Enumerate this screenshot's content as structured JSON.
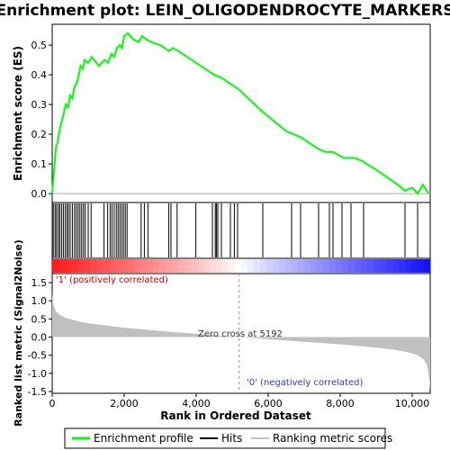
{
  "title": "Enrichment plot: LEIN_OLIGODENDROCYTE_MARKERS",
  "colors": {
    "es_line": "#00ff00",
    "hits": "#000000",
    "metric_fill": "#c0c0c0",
    "pos_label": "#cc0000",
    "neg_label": "#3333cc"
  },
  "chart_data": [
    {
      "type": "line",
      "name": "enrichment-profile",
      "ylabel": "Enrichment score (ES)",
      "xlim": [
        0,
        10500
      ],
      "ylim": [
        -0.03,
        0.57
      ],
      "yticks": [
        0.0,
        0.1,
        0.2,
        0.3,
        0.4,
        0.5
      ],
      "ytick_labels": [
        "0.0",
        "0.1",
        "0.2",
        "0.3",
        "0.4",
        "0.5"
      ],
      "grid": false,
      "x": [
        0,
        40,
        80,
        110,
        150,
        200,
        260,
        320,
        380,
        440,
        500,
        560,
        620,
        680,
        740,
        790,
        850,
        900,
        1000,
        1100,
        1300,
        1450,
        1550,
        1650,
        1720,
        1800,
        1880,
        1940,
        2000,
        2100,
        2250,
        2400,
        2500,
        2600,
        2750,
        3000,
        3250,
        3350,
        3500,
        4000,
        4500,
        4700,
        5192,
        5800,
        6500,
        6900,
        7400,
        7600,
        7800,
        8100,
        8400,
        8600,
        9000,
        9600,
        9800,
        10000,
        10150,
        10300,
        10450
      ],
      "y": [
        0.0,
        0.06,
        0.12,
        0.16,
        0.17,
        0.21,
        0.24,
        0.27,
        0.3,
        0.29,
        0.33,
        0.32,
        0.36,
        0.37,
        0.4,
        0.43,
        0.42,
        0.45,
        0.44,
        0.46,
        0.43,
        0.45,
        0.44,
        0.47,
        0.46,
        0.49,
        0.5,
        0.49,
        0.53,
        0.54,
        0.52,
        0.51,
        0.53,
        0.52,
        0.51,
        0.5,
        0.48,
        0.49,
        0.48,
        0.44,
        0.4,
        0.39,
        0.35,
        0.28,
        0.21,
        0.19,
        0.15,
        0.14,
        0.14,
        0.12,
        0.12,
        0.11,
        0.08,
        0.03,
        0.01,
        0.02,
        0.0,
        0.03,
        0.0
      ]
    },
    {
      "type": "scatter",
      "name": "hits",
      "x": [
        30,
        80,
        120,
        170,
        210,
        260,
        310,
        360,
        410,
        450,
        500,
        560,
        620,
        670,
        720,
        770,
        820,
        870,
        920,
        1000,
        1080,
        1440,
        1540,
        1610,
        1660,
        1720,
        1780,
        1830,
        1880,
        1930,
        1980,
        2030,
        2080,
        2470,
        2560,
        2660,
        3240,
        3300,
        3470,
        3990,
        4450,
        4530,
        4560,
        4600,
        4700,
        4950,
        5060,
        5150,
        5850,
        6650,
        6900,
        7400,
        7700,
        7800,
        8050,
        8300,
        8650,
        9800,
        10150
      ]
    },
    {
      "type": "area",
      "name": "ranking-metric-scores",
      "ylabel": "Ranked list metric (Signal2Noise)",
      "xlabel": "Rank in Ordered Dataset",
      "xlim": [
        0,
        10500
      ],
      "ylim": [
        -1.55,
        1.75
      ],
      "xticks": [
        0,
        2000,
        4000,
        6000,
        8000,
        10000
      ],
      "xtick_labels": [
        "0",
        "2,000",
        "4,000",
        "6,000",
        "8,000",
        "10,000"
      ],
      "yticks": [
        -1.5,
        -1.0,
        -0.5,
        0.0,
        0.5,
        1.0,
        1.5
      ],
      "ytick_labels": [
        "-1.5",
        "-1.0",
        "-0.5",
        "0.0",
        "0.5",
        "1.0",
        "1.5"
      ],
      "x": [
        0,
        20,
        60,
        100,
        200,
        400,
        700,
        1000,
        1500,
        2000,
        3000,
        4000,
        5192,
        6000,
        7000,
        8000,
        9000,
        9500,
        9900,
        10150,
        10300,
        10400,
        10450,
        10480,
        10499
      ],
      "y": [
        1.2,
        0.98,
        0.82,
        0.72,
        0.62,
        0.52,
        0.44,
        0.38,
        0.32,
        0.26,
        0.17,
        0.09,
        0.0,
        -0.06,
        -0.13,
        -0.2,
        -0.29,
        -0.35,
        -0.42,
        -0.5,
        -0.6,
        -0.75,
        -0.95,
        -1.2,
        -1.45
      ]
    }
  ],
  "annotations": {
    "zero_cross": "Zero cross at 5192",
    "zero_cross_rank": 5192,
    "positive": "'1' (positively correlated)",
    "negative": "'0' (negatively correlated)"
  },
  "legend": {
    "items": [
      {
        "label": "Enrichment profile",
        "color": "#00ff00"
      },
      {
        "label": "Hits",
        "color": "#000000"
      },
      {
        "label": "Ranking metric scores",
        "color": "#c0c0c0"
      }
    ]
  }
}
